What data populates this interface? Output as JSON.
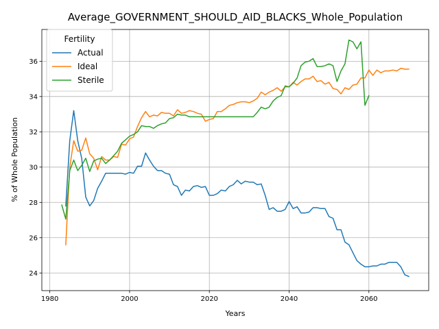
{
  "chart_data": {
    "type": "line",
    "title": "Average_GOVERNMENT_SHOULD_AID_BLACKS_Whole_Population",
    "xlabel": "Years",
    "ylabel": "% of Whole Population",
    "xlim": [
      1978,
      2075
    ],
    "ylim": [
      23,
      37.8
    ],
    "xticks": [
      1980,
      2000,
      2020,
      2040,
      2060
    ],
    "yticks": [
      24,
      26,
      28,
      30,
      32,
      34,
      36
    ],
    "grid": true,
    "legend": {
      "title": "Fertility",
      "placement": "top-left"
    },
    "series": [
      {
        "name": "Actual",
        "color": "#1f77b4",
        "x": [
          1984,
          1985,
          1986,
          1987,
          1988,
          1989,
          1990,
          1991,
          1992,
          1993,
          1994,
          1995,
          1996,
          1997,
          1998,
          1999,
          2000,
          2001,
          2002,
          2003,
          2004,
          2005,
          2006,
          2007,
          2008,
          2009,
          2010,
          2011,
          2012,
          2013,
          2014,
          2015,
          2016,
          2017,
          2018,
          2019,
          2020,
          2021,
          2022,
          2023,
          2024,
          2025,
          2026,
          2027,
          2028,
          2029,
          2030,
          2031,
          2032,
          2033,
          2034,
          2035,
          2036,
          2037,
          2038,
          2039,
          2040,
          2041,
          2042,
          2043,
          2044,
          2045,
          2046,
          2047,
          2048,
          2049,
          2050,
          2051,
          2052,
          2053,
          2054,
          2055,
          2056,
          2057,
          2058,
          2059,
          2060,
          2061,
          2062,
          2063,
          2064,
          2065,
          2066,
          2067,
          2068,
          2069,
          2070
        ],
        "y": [
          27.8,
          31.5,
          33.2,
          31.5,
          30.5,
          28.3,
          27.8,
          28.1,
          28.8,
          29.2,
          29.65,
          29.65,
          29.65,
          29.65,
          29.65,
          29.6,
          29.7,
          29.65,
          30.05,
          30.05,
          30.8,
          30.4,
          30.05,
          29.8,
          29.8,
          29.65,
          29.6,
          29.0,
          28.9,
          28.4,
          28.7,
          28.65,
          28.9,
          28.95,
          28.85,
          28.9,
          28.4,
          28.4,
          28.5,
          28.7,
          28.65,
          28.9,
          29.0,
          29.25,
          29.05,
          29.2,
          29.15,
          29.15,
          29.0,
          29.05,
          28.4,
          27.6,
          27.7,
          27.5,
          27.5,
          27.6,
          28.05,
          27.65,
          27.75,
          27.4,
          27.4,
          27.45,
          27.7,
          27.7,
          27.65,
          27.65,
          27.2,
          27.1,
          26.45,
          26.45,
          25.75,
          25.6,
          25.15,
          24.7,
          24.5,
          24.35,
          24.35,
          24.4,
          24.4,
          24.5,
          24.5,
          24.6,
          24.6,
          24.6,
          24.35,
          23.9,
          23.8
        ]
      },
      {
        "name": "Ideal",
        "color": "#ff7f0e",
        "x": [
          1984,
          1985,
          1986,
          1987,
          1988,
          1989,
          1990,
          1991,
          1992,
          1993,
          1994,
          1995,
          1996,
          1997,
          1998,
          1999,
          2000,
          2001,
          2002,
          2003,
          2004,
          2005,
          2006,
          2007,
          2008,
          2009,
          2010,
          2011,
          2012,
          2013,
          2014,
          2015,
          2016,
          2017,
          2018,
          2019,
          2020,
          2021,
          2022,
          2023,
          2024,
          2025,
          2026,
          2027,
          2028,
          2029,
          2030,
          2031,
          2032,
          2033,
          2034,
          2035,
          2036,
          2037,
          2038,
          2039,
          2040,
          2041,
          2042,
          2043,
          2044,
          2045,
          2046,
          2047,
          2048,
          2049,
          2050,
          2051,
          2052,
          2053,
          2054,
          2055,
          2056,
          2057,
          2058,
          2059,
          2060,
          2061,
          2062,
          2063,
          2064,
          2065,
          2066,
          2067,
          2068,
          2069,
          2070
        ],
        "y": [
          25.6,
          30.0,
          31.5,
          30.9,
          30.95,
          31.65,
          30.75,
          30.5,
          29.85,
          30.6,
          30.4,
          30.4,
          30.6,
          30.55,
          31.3,
          31.25,
          31.6,
          31.7,
          32.3,
          32.8,
          33.15,
          32.85,
          32.95,
          32.9,
          33.1,
          33.05,
          33.05,
          32.9,
          33.25,
          33.05,
          33.1,
          33.2,
          33.15,
          33.05,
          33.0,
          32.6,
          32.7,
          32.75,
          33.15,
          33.15,
          33.3,
          33.5,
          33.55,
          33.65,
          33.7,
          33.7,
          33.65,
          33.75,
          33.9,
          34.25,
          34.1,
          34.25,
          34.35,
          34.5,
          34.3,
          34.55,
          34.55,
          34.8,
          34.65,
          34.85,
          35.0,
          35.0,
          35.15,
          34.85,
          34.9,
          34.7,
          34.8,
          34.45,
          34.4,
          34.15,
          34.5,
          34.4,
          34.65,
          34.7,
          35.05,
          35.05,
          35.5,
          35.2,
          35.5,
          35.35,
          35.45,
          35.45,
          35.5,
          35.45,
          35.6,
          35.55,
          35.55
        ]
      },
      {
        "name": "Sterile",
        "color": "#2ca02c",
        "x": [
          1983,
          1984,
          1985,
          1986,
          1987,
          1988,
          1989,
          1990,
          1991,
          1992,
          1993,
          1994,
          1995,
          1996,
          1997,
          1998,
          1999,
          2000,
          2001,
          2002,
          2003,
          2004,
          2005,
          2006,
          2007,
          2008,
          2009,
          2010,
          2011,
          2012,
          2013,
          2014,
          2015,
          2016,
          2017,
          2018,
          2019,
          2020,
          2021,
          2022,
          2023,
          2024,
          2025,
          2026,
          2027,
          2028,
          2029,
          2030,
          2031,
          2032,
          2033,
          2034,
          2035,
          2036,
          2037,
          2038,
          2039,
          2040,
          2041,
          2042,
          2043,
          2044,
          2045,
          2046,
          2047,
          2048,
          2049,
          2050,
          2051,
          2052,
          2053,
          2054,
          2055,
          2056,
          2057,
          2058,
          2059,
          2060
        ],
        "y": [
          27.85,
          27.05,
          29.8,
          30.4,
          29.8,
          30.1,
          30.5,
          29.75,
          30.35,
          30.45,
          30.5,
          30.2,
          30.4,
          30.65,
          30.9,
          31.35,
          31.55,
          31.75,
          31.85,
          32.0,
          32.35,
          32.3,
          32.3,
          32.2,
          32.35,
          32.45,
          32.5,
          32.75,
          32.8,
          33.0,
          32.95,
          32.95,
          32.85,
          32.85,
          32.85,
          32.85,
          32.85,
          32.85,
          32.85,
          32.85,
          32.85,
          32.85,
          32.85,
          32.85,
          32.85,
          32.85,
          32.85,
          32.85,
          32.85,
          33.1,
          33.4,
          33.3,
          33.4,
          33.75,
          33.95,
          34.05,
          34.6,
          34.55,
          34.75,
          35.05,
          35.75,
          35.95,
          36.0,
          36.15,
          35.7,
          35.7,
          35.75,
          35.85,
          35.75,
          34.85,
          35.45,
          35.85,
          37.2,
          37.1,
          36.7,
          37.1,
          33.5,
          34.05
        ]
      }
    ]
  }
}
